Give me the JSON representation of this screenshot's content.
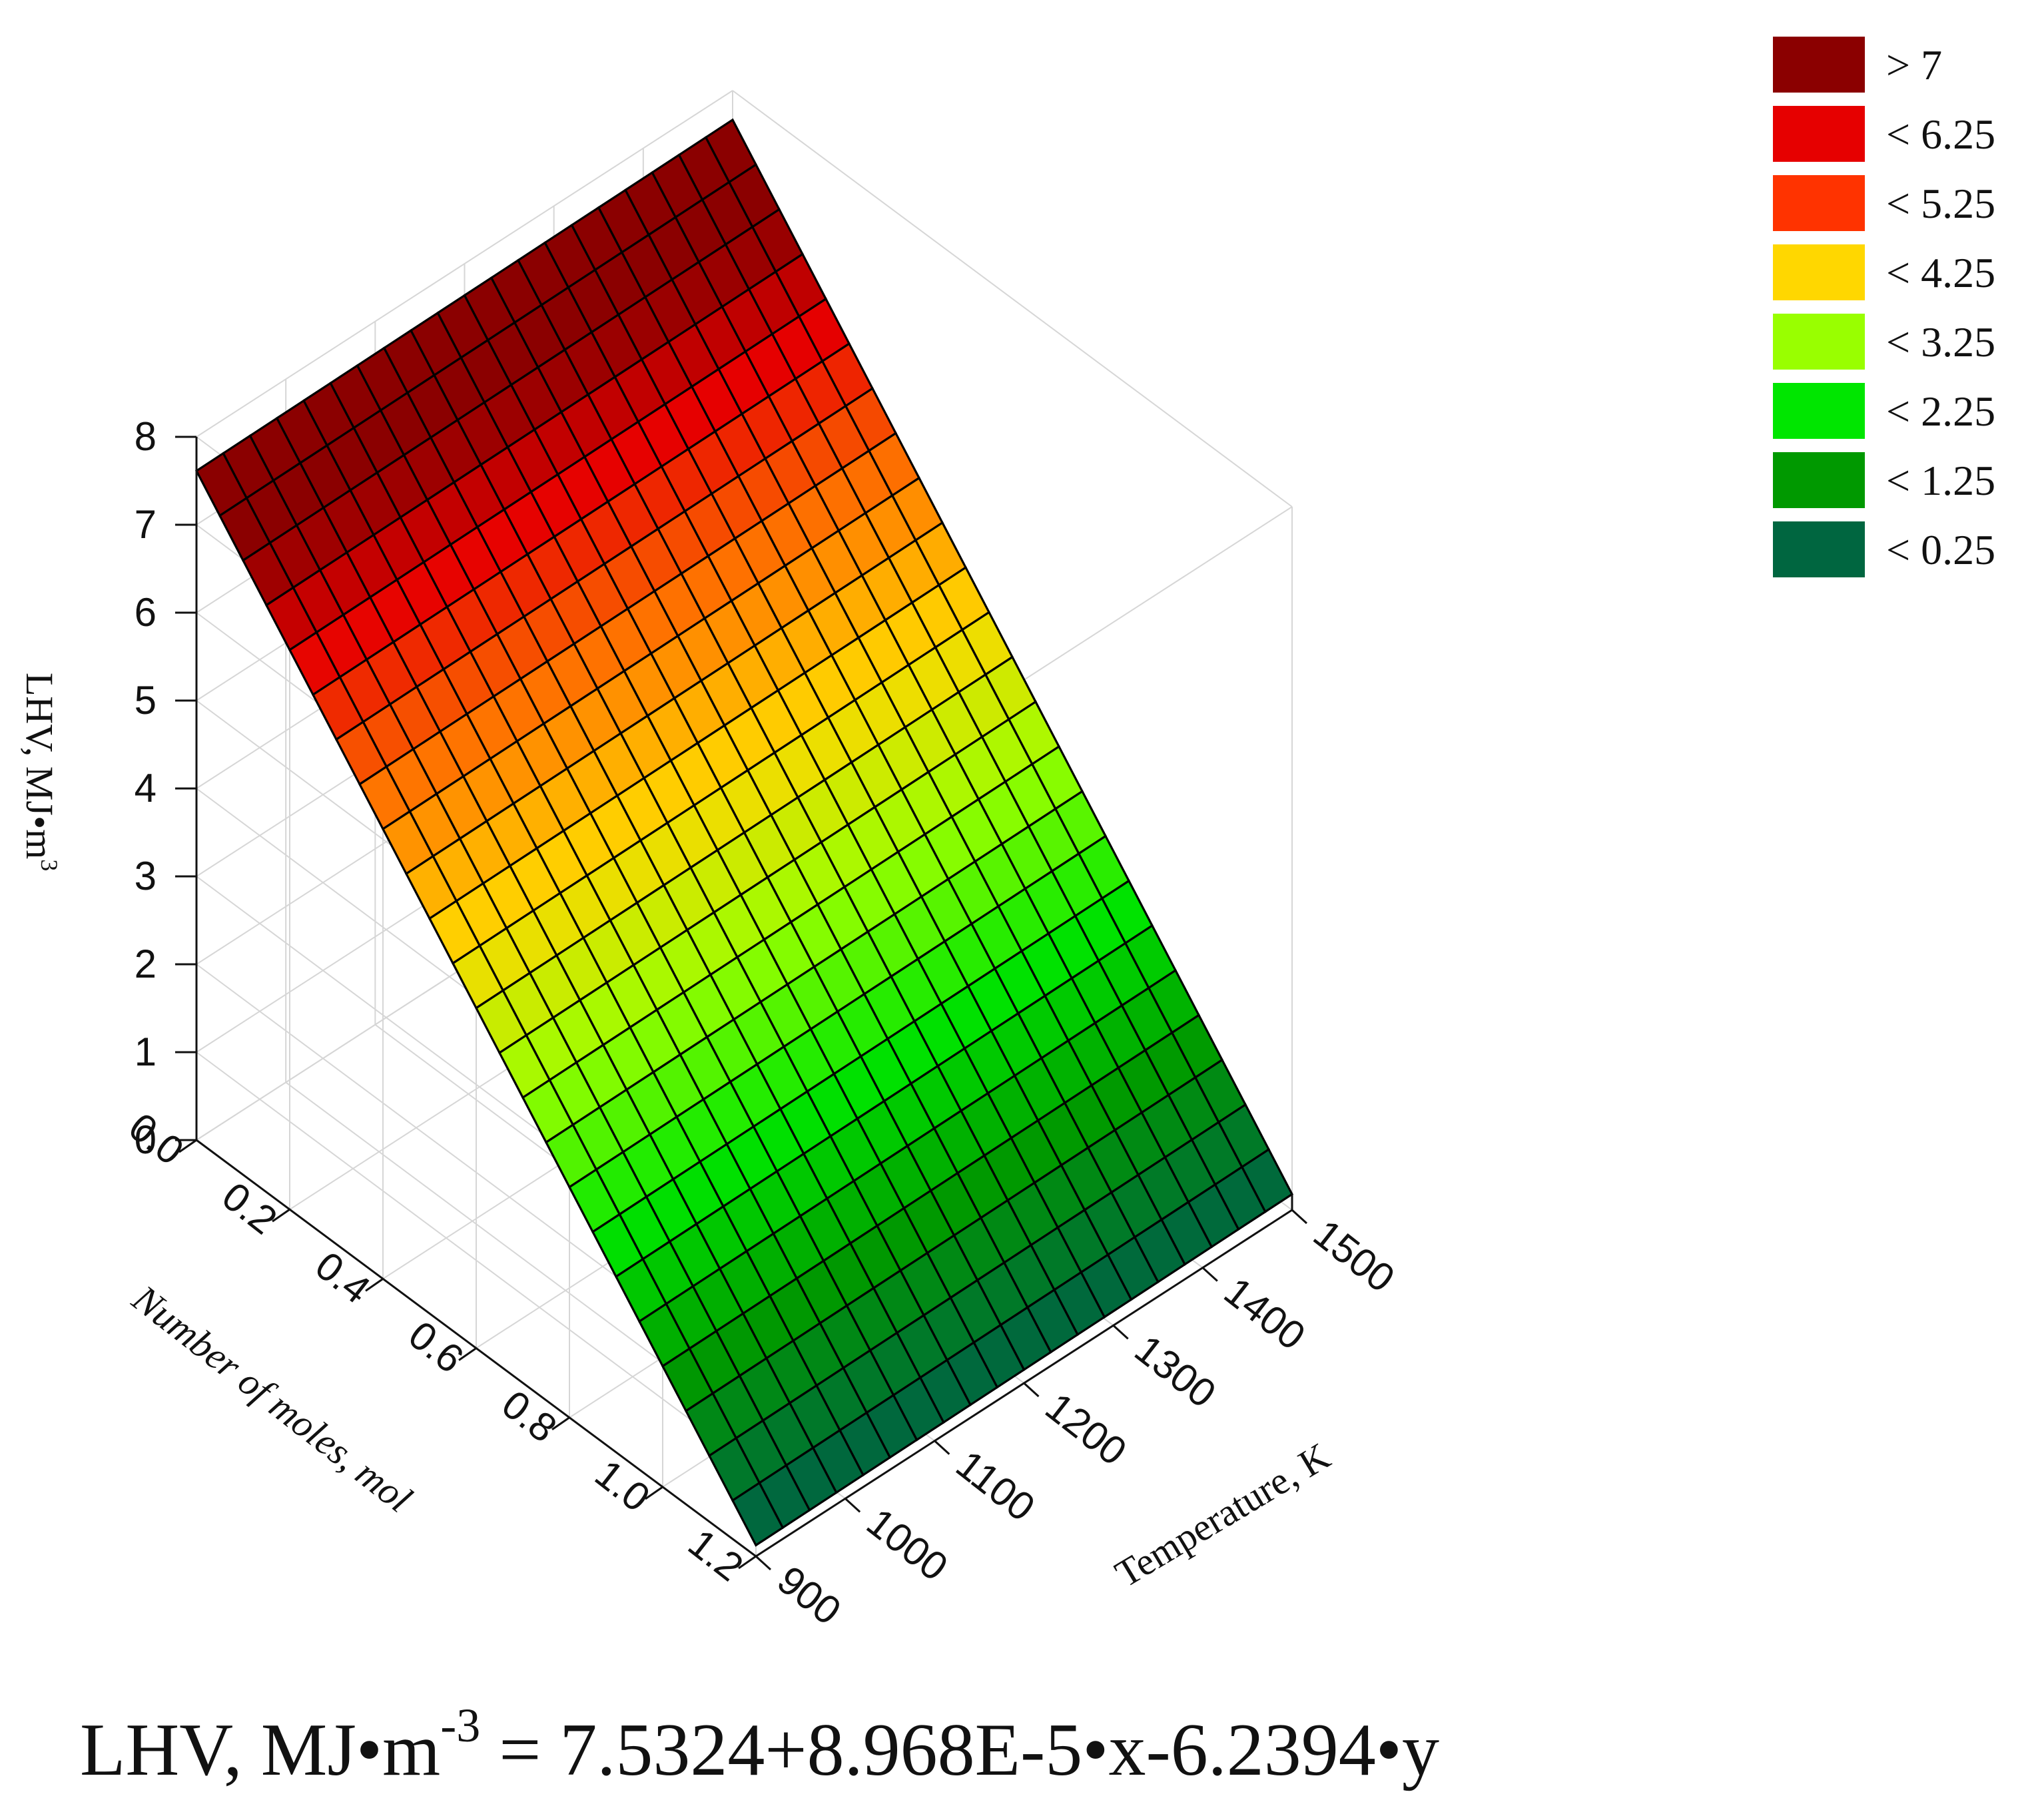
{
  "chart_data": {
    "type": "surface3d",
    "x_axis": {
      "label": "Temperature, K",
      "range": [
        900,
        1500
      ],
      "ticks": [
        "900",
        "1000",
        "1100",
        "1200",
        "1300",
        "1400",
        "1500"
      ]
    },
    "y_axis": {
      "label": "Number of moles, mol",
      "range": [
        0.0,
        1.2
      ],
      "ticks": [
        "0.0",
        "0.2",
        "0.4",
        "0.6",
        "0.8",
        "1.0",
        "1.2"
      ]
    },
    "z_axis": {
      "label": "LHV, MJ•m",
      "label_superscript": "3",
      "range": [
        0,
        8
      ],
      "ticks": [
        "0",
        "1",
        "2",
        "3",
        "4",
        "5",
        "6",
        "7",
        "8"
      ]
    },
    "model": {
      "intercept": 7.5324,
      "coef_x": 8.968e-05,
      "coef_y": -6.2394
    },
    "surface_grid": {
      "x_steps": 20,
      "y_steps": 24
    },
    "legend": [
      {
        "label": "> 7",
        "color": "#8b0000"
      },
      {
        "label": "< 6.25",
        "color": "#e60000"
      },
      {
        "label": "< 5.25",
        "color": "#ff3300"
      },
      {
        "label": "< 4.25",
        "color": "#ffd700"
      },
      {
        "label": "< 3.25",
        "color": "#99ff00"
      },
      {
        "label": "< 2.25",
        "color": "#00e600"
      },
      {
        "label": "< 1.25",
        "color": "#009900"
      },
      {
        "label": "< 0.25",
        "color": "#006640"
      }
    ],
    "grid": true
  },
  "equation": {
    "prefix": "LHV, MJ•m",
    "superscript": "-3",
    "suffix": " = 7.5324+8.968E-5•x-6.2394•y"
  }
}
